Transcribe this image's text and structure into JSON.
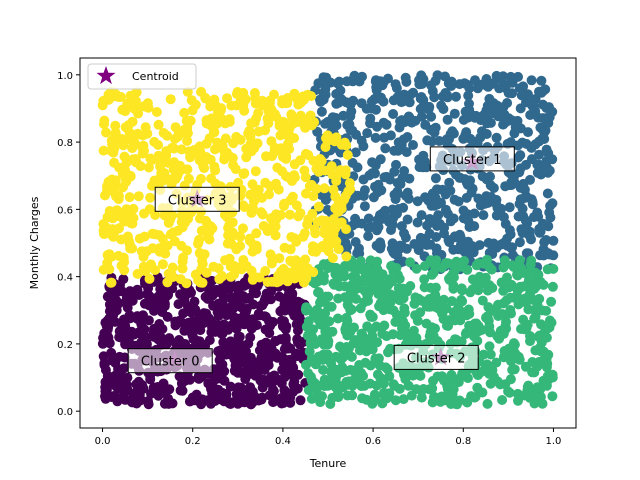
{
  "chart_data": {
    "type": "scatter",
    "title": "",
    "xlabel": "Tenure",
    "ylabel": "Monthly Charges",
    "xlim": [
      -0.05,
      1.05
    ],
    "ylim": [
      -0.05,
      1.05
    ],
    "xticks": [
      "0.0",
      "0.2",
      "0.4",
      "0.6",
      "0.8",
      "1.0"
    ],
    "yticks": [
      "0.0",
      "0.2",
      "0.4",
      "0.6",
      "0.8",
      "1.0"
    ],
    "grid": false,
    "legend": {
      "position": "top-left",
      "entries": [
        "Centroid"
      ]
    },
    "series": [
      {
        "cluster": "Cluster 0",
        "color": "#440154",
        "x_range": [
          0.0,
          0.45
        ],
        "y_range": [
          0.02,
          0.4
        ]
      },
      {
        "cluster": "Cluster 1",
        "color": "#31688e",
        "x_range": [
          0.47,
          1.0
        ],
        "y_range": [
          0.42,
          1.0
        ]
      },
      {
        "cluster": "Cluster 2",
        "color": "#35b779",
        "x_range": [
          0.45,
          1.0
        ],
        "y_range": [
          0.02,
          0.45
        ]
      },
      {
        "cluster": "Cluster 3",
        "color": "#fde725",
        "x_range": [
          0.0,
          0.55
        ],
        "y_range": [
          0.38,
          0.95
        ]
      }
    ],
    "centroids": [
      {
        "label": "Cluster 0",
        "x": 0.16,
        "y": 0.15
      },
      {
        "label": "Cluster 1",
        "x": 0.82,
        "y": 0.74
      },
      {
        "label": "Cluster 2",
        "x": 0.75,
        "y": 0.16
      },
      {
        "label": "Cluster 3",
        "x": 0.21,
        "y": 0.63
      }
    ],
    "centroid_color": "#800080",
    "annotations": [
      {
        "text": "Cluster 0",
        "x": 0.15,
        "y": 0.15
      },
      {
        "text": "Cluster 1",
        "x": 0.82,
        "y": 0.75
      },
      {
        "text": "Cluster 2",
        "x": 0.74,
        "y": 0.16
      },
      {
        "text": "Cluster 3",
        "x": 0.21,
        "y": 0.63
      }
    ]
  }
}
